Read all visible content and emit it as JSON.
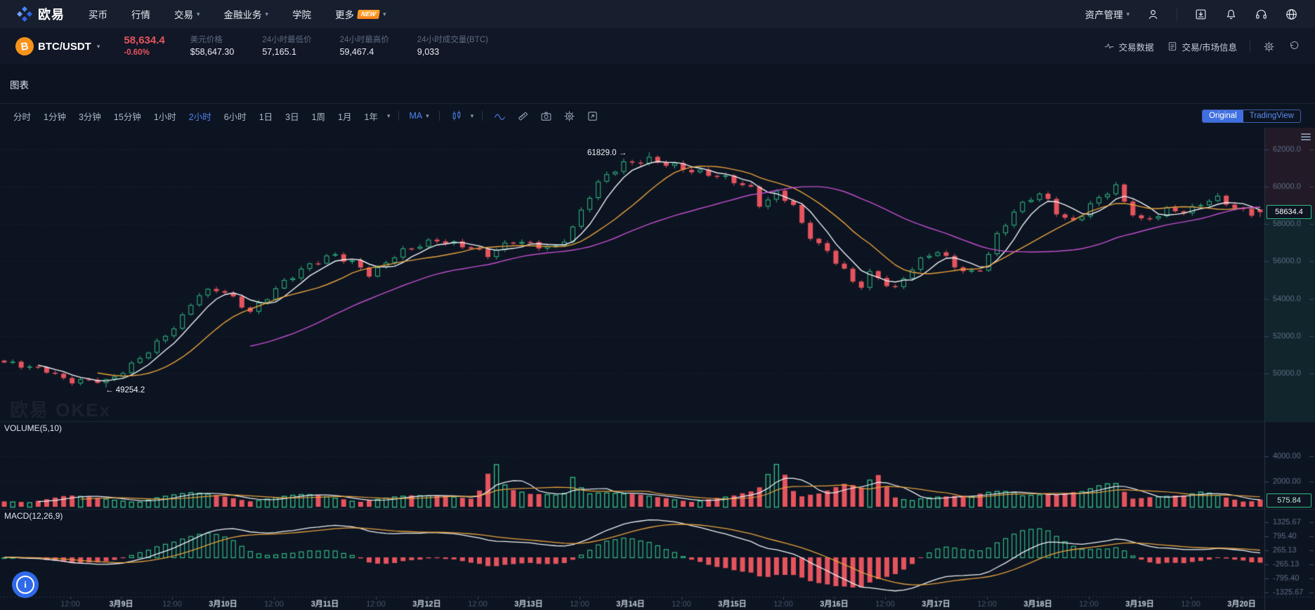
{
  "nav": {
    "brand": "欧易",
    "items": [
      {
        "label": "买币",
        "dropdown": false
      },
      {
        "label": "行情",
        "dropdown": false
      },
      {
        "label": "交易",
        "dropdown": true
      },
      {
        "label": "金融业务",
        "dropdown": true
      },
      {
        "label": "学院",
        "dropdown": false
      },
      {
        "label": "更多",
        "badge": "NEW",
        "dropdown": true
      }
    ],
    "assets_label": "资产管理",
    "right_icons": [
      "user-icon",
      "download-icon",
      "bell-icon",
      "headset-icon",
      "globe-icon"
    ]
  },
  "ticker": {
    "pair": "BTC/USDT",
    "last_price": "58,634.4",
    "change_pct": "-0.60%",
    "stats": [
      {
        "label": "美元价格",
        "value": "$58,647.30"
      },
      {
        "label": "24小时最低价",
        "value": "57,165.1"
      },
      {
        "label": "24小时最高价",
        "value": "59,467.4"
      },
      {
        "label": "24小时成交量(BTC)",
        "value": "9,033"
      }
    ],
    "links": [
      {
        "label": "交易数据",
        "icon": "pulse-icon"
      },
      {
        "label": "交易/市场信息",
        "icon": "doc-icon"
      }
    ]
  },
  "panel": {
    "title": "图表"
  },
  "toolbar": {
    "timeframes": [
      "分时",
      "1分钟",
      "3分钟",
      "15分钟",
      "1小时",
      "2小时",
      "6小时",
      "1日",
      "3日",
      "1周",
      "1月",
      "1年"
    ],
    "active_timeframe": "2小时",
    "ma_label": "MA",
    "toggle": {
      "options": [
        "Original",
        "TradingView"
      ],
      "active": "Original"
    }
  },
  "chart_data": {
    "type": "candlestick",
    "pair": "BTC/USDT",
    "interval": "2小时",
    "watermark": "欧易 OKEx",
    "volume_label": "VOLUME(5,10)",
    "macd_label": "MACD(12,26,9)",
    "high_annotation": {
      "text": "61829.0 →",
      "price": 61829.0
    },
    "low_annotation": {
      "text": "← 49254.2",
      "price": 49254.2
    },
    "last_price": 58634.4,
    "last_price_tag": "58634.4",
    "last_volume_tag": "575.84",
    "last_volume": 575.84,
    "price_ticks": [
      62000.0,
      60000.0,
      58000.0,
      56000.0,
      54000.0,
      52000.0,
      50000.0
    ],
    "price_range": [
      47450,
      63150
    ],
    "volume_ticks": [
      4000.0,
      2000.0
    ],
    "volume_scale_max": 4000,
    "macd_ticks": [
      1325.67,
      795.4,
      265.13,
      -265.13,
      -795.4,
      -1325.67
    ],
    "candle_count": 149,
    "x_labels": [
      "12:00",
      "3月9日",
      "12:00",
      "3月10日",
      "12:00",
      "3月11日",
      "12:00",
      "3月12日",
      "12:00",
      "3月13日",
      "12:00",
      "3月14日",
      "12:00",
      "3月15日",
      "12:00",
      "3月16日",
      "12:00",
      "3月17日",
      "12:00",
      "3月18日",
      "12:00",
      "3月19日",
      "12:00",
      "3月20日"
    ],
    "ma_periods": {
      "price": [
        5,
        12,
        30
      ],
      "volume": [
        5,
        10
      ],
      "macd": [
        12,
        26,
        9
      ]
    },
    "series_colors": {
      "up": "#2fbc85",
      "down": "#e5545e",
      "ma_fast": "#f0f3f7",
      "ma_mid": "#e8a33d",
      "ma_slow": "#c44fd0"
    },
    "price_waypoints": [
      [
        0.0,
        50500
      ],
      [
        0.035,
        50250
      ],
      [
        0.05,
        49650
      ],
      [
        0.083,
        49500
      ],
      [
        0.1,
        50400
      ],
      [
        0.123,
        51800
      ],
      [
        0.14,
        52800
      ],
      [
        0.153,
        54100
      ],
      [
        0.172,
        54500
      ],
      [
        0.196,
        53400
      ],
      [
        0.219,
        54700
      ],
      [
        0.24,
        55600
      ],
      [
        0.262,
        56400
      ],
      [
        0.279,
        56000
      ],
      [
        0.292,
        55300
      ],
      [
        0.312,
        56300
      ],
      [
        0.345,
        57200
      ],
      [
        0.368,
        56900
      ],
      [
        0.385,
        56300
      ],
      [
        0.405,
        57000
      ],
      [
        0.424,
        56900
      ],
      [
        0.438,
        56800
      ],
      [
        0.451,
        57600
      ],
      [
        0.464,
        59300
      ],
      [
        0.477,
        60400
      ],
      [
        0.494,
        61200
      ],
      [
        0.514,
        61550
      ],
      [
        0.53,
        61250
      ],
      [
        0.55,
        60700
      ],
      [
        0.567,
        60500
      ],
      [
        0.583,
        60300
      ],
      [
        0.597,
        59900
      ],
      [
        0.603,
        58900
      ],
      [
        0.613,
        59800
      ],
      [
        0.627,
        59100
      ],
      [
        0.637,
        57600
      ],
      [
        0.647,
        56900
      ],
      [
        0.657,
        56400
      ],
      [
        0.67,
        55500
      ],
      [
        0.68,
        54600
      ],
      [
        0.69,
        55500
      ],
      [
        0.7,
        54900
      ],
      [
        0.71,
        54400
      ],
      [
        0.719,
        55300
      ],
      [
        0.733,
        56200
      ],
      [
        0.743,
        56600
      ],
      [
        0.756,
        55900
      ],
      [
        0.769,
        55400
      ],
      [
        0.779,
        55700
      ],
      [
        0.792,
        57500
      ],
      [
        0.806,
        58700
      ],
      [
        0.822,
        59700
      ],
      [
        0.832,
        59300
      ],
      [
        0.842,
        58400
      ],
      [
        0.852,
        58200
      ],
      [
        0.862,
        58800
      ],
      [
        0.875,
        59500
      ],
      [
        0.885,
        59900
      ],
      [
        0.895,
        58800
      ],
      [
        0.905,
        58200
      ],
      [
        0.915,
        58500
      ],
      [
        0.928,
        58900
      ],
      [
        0.942,
        58600
      ],
      [
        0.955,
        59100
      ],
      [
        0.968,
        59300
      ],
      [
        0.978,
        58900
      ],
      [
        0.988,
        58700
      ],
      [
        1.0,
        58634.4
      ]
    ],
    "volume_waypoints": [
      [
        0.0,
        520
      ],
      [
        0.05,
        950
      ],
      [
        0.08,
        700
      ],
      [
        0.1,
        640
      ],
      [
        0.12,
        980
      ],
      [
        0.15,
        1150
      ],
      [
        0.2,
        820
      ],
      [
        0.24,
        1020
      ],
      [
        0.28,
        760
      ],
      [
        0.31,
        880
      ],
      [
        0.345,
        950
      ],
      [
        0.375,
        1300
      ],
      [
        0.39,
        4600
      ],
      [
        0.4,
        1500
      ],
      [
        0.42,
        1000
      ],
      [
        0.445,
        1200
      ],
      [
        0.454,
        4300
      ],
      [
        0.465,
        1700
      ],
      [
        0.49,
        1100
      ],
      [
        0.52,
        850
      ],
      [
        0.55,
        750
      ],
      [
        0.58,
        900
      ],
      [
        0.6,
        1350
      ],
      [
        0.617,
        4500
      ],
      [
        0.63,
        1700
      ],
      [
        0.65,
        1400
      ],
      [
        0.67,
        1900
      ],
      [
        0.683,
        1500
      ],
      [
        0.695,
        2900
      ],
      [
        0.71,
        950
      ],
      [
        0.73,
        1050
      ],
      [
        0.75,
        900
      ],
      [
        0.77,
        850
      ],
      [
        0.79,
        1500
      ],
      [
        0.806,
        1950
      ],
      [
        0.82,
        1400
      ],
      [
        0.84,
        1050
      ],
      [
        0.86,
        1250
      ],
      [
        0.875,
        2050
      ],
      [
        0.885,
        2600
      ],
      [
        0.9,
        1150
      ],
      [
        0.92,
        950
      ],
      [
        0.94,
        900
      ],
      [
        0.955,
        1300
      ],
      [
        0.97,
        1050
      ],
      [
        0.985,
        850
      ],
      [
        1.0,
        575.84
      ]
    ]
  },
  "colors": {
    "bg": "#0d1421",
    "nav_bg": "#171e2d",
    "accent": "#4b83f0",
    "up": "#2fbc85",
    "down": "#e5545e"
  }
}
